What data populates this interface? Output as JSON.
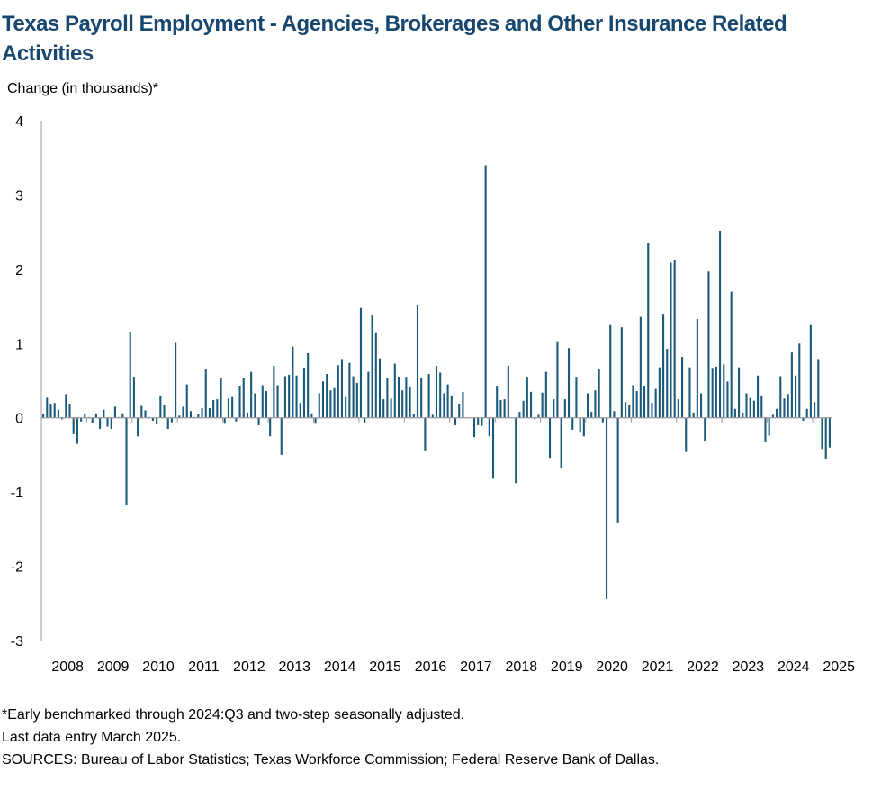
{
  "chart_data": {
    "type": "bar",
    "title": "Texas Payroll Employment - Agencies, Brokerages and Other Insurance Related Activities",
    "ylabel": "Change (in thousands)*",
    "xlabel": "",
    "ylim": [
      -3,
      4
    ],
    "yticks": [
      "4",
      "3",
      "2",
      "1",
      "0",
      "-1",
      "-2",
      "-3"
    ],
    "x_start": "2008-01",
    "x_end": "2025-03",
    "x_tick_labels": [
      "2008",
      "2009",
      "2010",
      "2011",
      "2012",
      "2013",
      "2014",
      "2015",
      "2016",
      "2017",
      "2018",
      "2019",
      "2020",
      "2021",
      "2022",
      "2023",
      "2024",
      "2025"
    ],
    "bar_color": "#1b5a7a",
    "grid": false,
    "legend": "none",
    "values": [
      0.05,
      0.27,
      0.19,
      0.2,
      0.11,
      -0.02,
      0.32,
      0.19,
      -0.22,
      -0.35,
      -0.05,
      0.06,
      0.01,
      -0.07,
      0.06,
      -0.15,
      0.11,
      -0.12,
      -0.15,
      0.15,
      0.01,
      0.06,
      -1.18,
      1.15,
      0.54,
      -0.25,
      0.16,
      0.1,
      0.01,
      -0.04,
      -0.09,
      0.29,
      0.17,
      -0.15,
      -0.06,
      1.01,
      0.03,
      0.15,
      0.45,
      0.09,
      0.01,
      0.05,
      0.13,
      0.65,
      0.13,
      0.24,
      0.25,
      0.53,
      -0.08,
      0.26,
      0.28,
      -0.05,
      0.43,
      0.53,
      0.07,
      0.62,
      0.33,
      -0.1,
      0.44,
      0.36,
      -0.25,
      0.7,
      0.44,
      -0.5,
      0.56,
      0.58,
      0.96,
      0.57,
      0.2,
      0.67,
      0.87,
      0.06,
      -0.08,
      0.33,
      0.49,
      0.59,
      0.37,
      0.4,
      0.71,
      0.78,
      0.28,
      0.74,
      0.56,
      0.47,
      1.48,
      -0.07,
      0.62,
      1.38,
      1.14,
      0.8,
      0.25,
      0.53,
      0.26,
      0.73,
      0.55,
      0.37,
      0.54,
      0.41,
      0.05,
      1.52,
      0.53,
      -0.45,
      0.59,
      0.04,
      0.7,
      0.61,
      0.33,
      0.45,
      0.29,
      -0.1,
      0.19,
      0.35,
      0.0,
      0.0,
      -0.26,
      -0.1,
      -0.11,
      3.4,
      -0.25,
      -0.82,
      0.42,
      0.24,
      0.25,
      0.7,
      0.0,
      -0.88,
      0.08,
      0.23,
      0.54,
      0.35,
      -0.02,
      0.04,
      0.34,
      0.62,
      -0.54,
      0.25,
      1.02,
      -0.68,
      0.25,
      0.94,
      -0.16,
      0.54,
      -0.2,
      -0.25,
      0.33,
      0.08,
      0.37,
      0.65,
      -0.06,
      -2.44,
      1.25,
      0.09,
      -1.41,
      1.22,
      0.21,
      0.18,
      0.44,
      0.36,
      1.36,
      0.42,
      2.35,
      0.2,
      0.39,
      0.68,
      1.39,
      0.93,
      2.09,
      2.12,
      0.25,
      0.82,
      -0.46,
      0.68,
      0.07,
      1.33,
      0.33,
      -0.31,
      1.97,
      0.66,
      0.69,
      2.52,
      0.72,
      0.49,
      1.7,
      0.12,
      0.68,
      0.07,
      0.33,
      0.27,
      0.23,
      0.57,
      0.29,
      -0.33,
      -0.24,
      0.04,
      0.12,
      0.56,
      0.26,
      0.32,
      0.88,
      0.57,
      1.0,
      -0.04,
      0.12,
      1.25,
      0.21,
      0.78,
      -0.42,
      -0.55,
      -0.4
    ]
  },
  "notes": {
    "line1": "*Early benchmarked through 2024:Q3 and two-step seasonally adjusted.",
    "line2": "Last data entry March 2025.",
    "line3": "SOURCES:  Bureau of Labor Statistics; Texas Workforce Commission;  Federal Reserve Bank of Dallas."
  }
}
